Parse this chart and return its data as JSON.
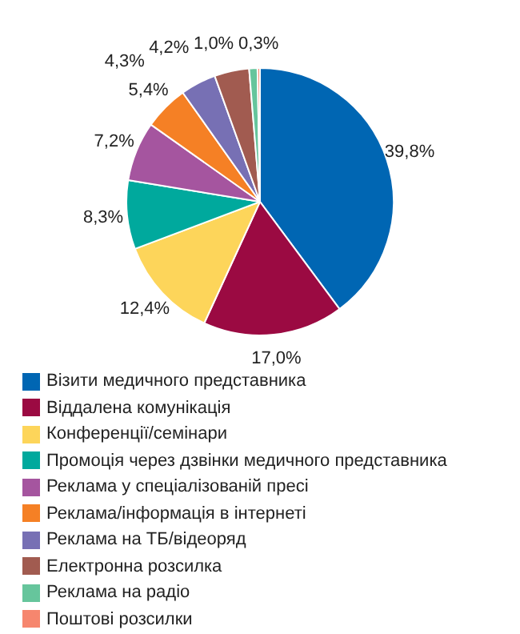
{
  "chart_data": {
    "type": "pie",
    "categories": [
      "Візити медичного представника",
      "Віддалена комунікація",
      "Конференції/семінари",
      "Промоція через дзвінки медичного представника",
      "Реклама у спеціалізованій пресі",
      "Реклама/інформація в інтернеті",
      "Реклама на ТБ/відеоряд",
      "Електронна розсилка",
      "Реклама на радіо",
      "Поштові розсилки"
    ],
    "values": [
      39.8,
      17.0,
      12.4,
      8.3,
      7.2,
      5.4,
      4.3,
      4.2,
      1.0,
      0.3
    ],
    "value_labels": [
      "39,8%",
      "17,0%",
      "12,4%",
      "8,3%",
      "7,2%",
      "5,4%",
      "4,3%",
      "4,2%",
      "1,0%",
      "0,3%"
    ],
    "colors": [
      "#0066b3",
      "#9b0a42",
      "#fdd55a",
      "#00a99d",
      "#a5559f",
      "#f58025",
      "#7770b4",
      "#a15b50",
      "#66c59c",
      "#f6866e"
    ],
    "legend": "bottom"
  }
}
